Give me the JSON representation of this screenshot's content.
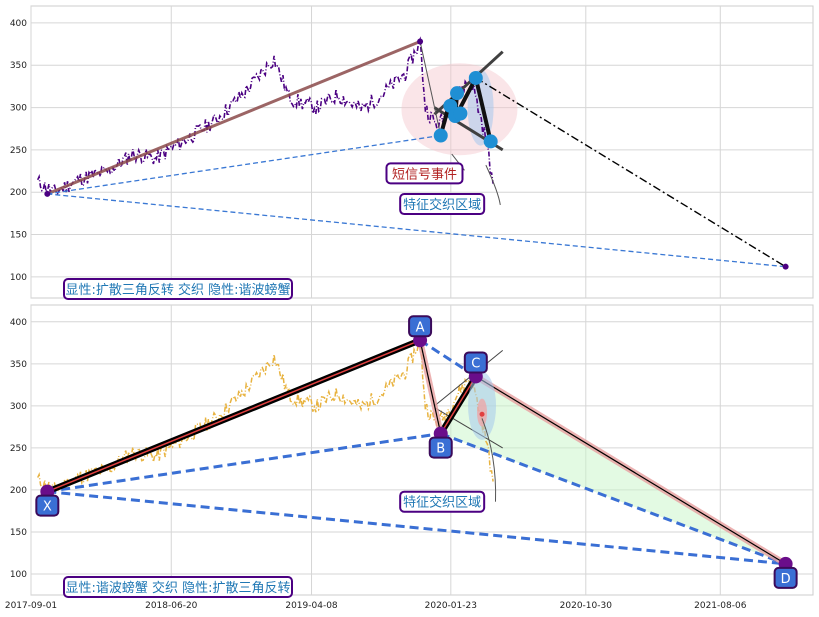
{
  "chart_data": [
    {
      "type": "line",
      "panel": "top",
      "x_range": [
        "2017-09-01",
        "2022-02-15"
      ],
      "ylim": [
        75,
        420
      ],
      "yticks": [
        100,
        150,
        200,
        250,
        300,
        350,
        400
      ],
      "grid": true,
      "price_series": {
        "color": "#4b0082",
        "style": "dash-dot",
        "points": [
          [
            "2017-09-15",
            212
          ],
          [
            "2017-10-20",
            200
          ],
          [
            "2017-12-10",
            215
          ],
          [
            "2018-02-10",
            225
          ],
          [
            "2018-04-01",
            245
          ],
          [
            "2018-05-20",
            240
          ],
          [
            "2018-07-20",
            262
          ],
          [
            "2018-09-20",
            285
          ],
          [
            "2018-11-20",
            318
          ],
          [
            "2019-01-20",
            358
          ],
          [
            "2019-02-20",
            312
          ],
          [
            "2019-03-20",
            305
          ],
          [
            "2019-04-20",
            300
          ],
          [
            "2019-06-01",
            315
          ],
          [
            "2019-07-20",
            298
          ],
          [
            "2019-09-01",
            315
          ],
          [
            "2019-10-20",
            340
          ],
          [
            "2019-11-20",
            378
          ],
          [
            "2019-12-01",
            300
          ],
          [
            "2019-12-25",
            278
          ],
          [
            "2020-01-15",
            292
          ],
          [
            "2020-02-10",
            318
          ],
          [
            "2020-03-05",
            335
          ],
          [
            "2020-03-20",
            300
          ],
          [
            "2020-04-05",
            262
          ],
          [
            "2020-04-20",
            210
          ]
        ]
      },
      "overlays": [
        {
          "name": "pattern-leg",
          "points": [
            [
              "2017-10-05",
              198
            ],
            [
              "2019-11-20",
              378
            ]
          ]
        },
        {
          "name": "pattern-baseline",
          "points": [
            [
              "2017-10-05",
              198
            ],
            [
              "2021-12-20",
              112
            ]
          ]
        },
        {
          "name": "support-line",
          "points": [
            [
              "2017-10-05",
              198
            ],
            [
              "2020-01-02",
              267
            ]
          ]
        },
        {
          "name": "projection-line",
          "points": [
            [
              "2020-03-15",
              335
            ],
            [
              "2021-12-20",
              112
            ]
          ]
        },
        {
          "name": "triangle-upper",
          "points": [
            [
              "2019-12-20",
              292
            ],
            [
              "2020-05-10",
              366
            ]
          ]
        },
        {
          "name": "triangle-lower",
          "points": [
            [
              "2019-12-20",
              300
            ],
            [
              "2020-05-10",
              250
            ]
          ]
        },
        {
          "name": "zigzag",
          "points": [
            [
              "2020-01-02",
              267
            ],
            [
              "2020-01-20",
              305
            ],
            [
              "2020-02-05",
              317
            ],
            [
              "2020-02-01",
              288
            ],
            [
              "2020-03-15",
              335
            ],
            [
              "2020-04-15",
              260
            ]
          ]
        }
      ],
      "markers": [
        [
          "2020-01-02",
          267
        ],
        [
          "2020-01-22",
          302
        ],
        [
          "2020-02-05",
          317
        ],
        [
          "2020-02-01",
          290
        ],
        [
          "2020-02-12",
          293
        ],
        [
          "2020-03-15",
          335
        ],
        [
          "2020-04-15",
          260
        ]
      ],
      "annotations": [
        {
          "text": "短信号事件",
          "color": "#b22222"
        },
        {
          "text": "特征交织区域",
          "color": "#1f77b4"
        },
        {
          "text": "显性:扩散三角反转 交织 隐性:谐波螃蟹",
          "color": "#1f77b4"
        }
      ]
    },
    {
      "type": "line",
      "panel": "bottom",
      "x_range": [
        "2017-09-01",
        "2022-02-15"
      ],
      "ylim": [
        75,
        420
      ],
      "yticks": [
        100,
        150,
        200,
        250,
        300,
        350,
        400
      ],
      "xticks": [
        "2017-09-01",
        "2018-06-20",
        "2019-04-08",
        "2020-01-23",
        "2020-10-30",
        "2021-08-06"
      ],
      "grid": true,
      "price_series": {
        "color": "#e8b340",
        "style": "dash-dot"
      },
      "harmonic_points": [
        {
          "label": "X",
          "date": "2017-10-05",
          "value": 198
        },
        {
          "label": "A",
          "date": "2019-11-20",
          "value": 378
        },
        {
          "label": "B",
          "date": "2020-01-02",
          "value": 267
        },
        {
          "label": "C",
          "date": "2020-03-15",
          "value": 335
        },
        {
          "label": "D",
          "date": "2021-12-20",
          "value": 112
        }
      ],
      "annotations": [
        {
          "text": "特征交织区域",
          "color": "#1f77b4"
        },
        {
          "text": "显性:谐波螃蟹 交织 隐性:扩散三角反转",
          "color": "#1f77b4"
        }
      ]
    }
  ]
}
